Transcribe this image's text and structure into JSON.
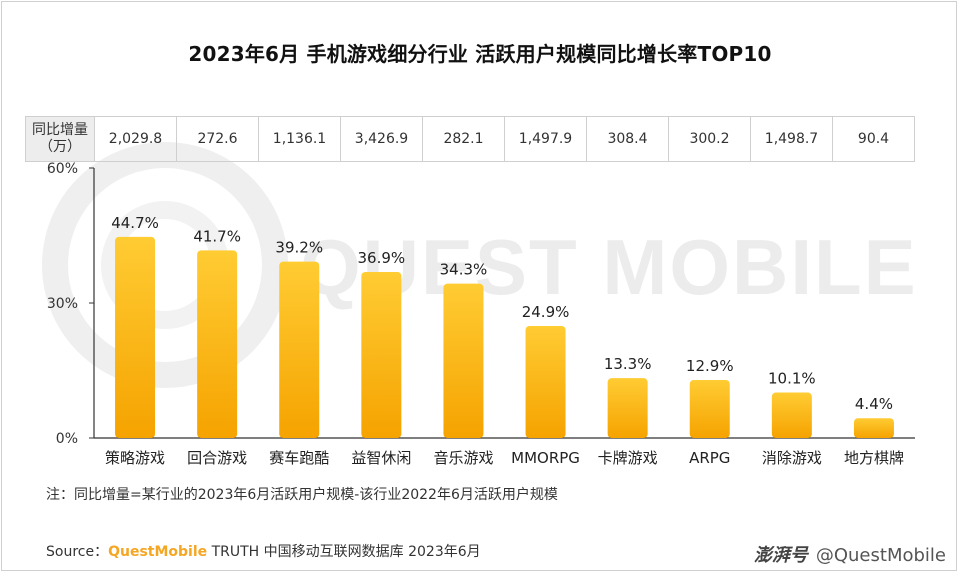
{
  "title": "2023年6月 手机游戏细分行业 活跃用户规模同比增长率TOP10",
  "watermark": "QUEST MOBILE",
  "table": {
    "header": "同比增量（万）",
    "header_line1": "同比增量",
    "header_line2": "（万）",
    "values": [
      "2,029.8",
      "272.6",
      "1,136.1",
      "3,426.9",
      "282.1",
      "1,497.9",
      "308.4",
      "300.2",
      "1,498.7",
      "90.4"
    ]
  },
  "chart_data": {
    "type": "bar",
    "categories": [
      "策略游戏",
      "回合游戏",
      "赛车跑酷",
      "益智休闲",
      "音乐游戏",
      "MMORPG",
      "卡牌游戏",
      "ARPG",
      "消除游戏",
      "地方棋牌"
    ],
    "values": [
      44.7,
      41.7,
      39.2,
      36.9,
      34.3,
      24.9,
      13.3,
      12.9,
      10.1,
      4.4
    ],
    "labels": [
      "44.7%",
      "41.7%",
      "39.2%",
      "36.9%",
      "34.3%",
      "24.9%",
      "13.3%",
      "12.9%",
      "10.1%",
      "4.4%"
    ],
    "ylim": [
      0,
      60
    ],
    "yticks": [
      "0%",
      "30%",
      "60%"
    ],
    "ytick_values": [
      0,
      30,
      60
    ],
    "bar_color_top": "#ffcc33",
    "bar_color_bottom": "#f5a300",
    "grid": false
  },
  "note": "注：同比增量=某行业的2023年6月活跃用户规模-该行业2022年6月活跃用户规模",
  "source": {
    "prefix": "Source：",
    "brand": "QuestMobile",
    "rest": " TRUTH 中国移动互联网数据库 2023年6月"
  },
  "credit": {
    "logo": "澎湃号",
    "handle": "@QuestMobile"
  }
}
